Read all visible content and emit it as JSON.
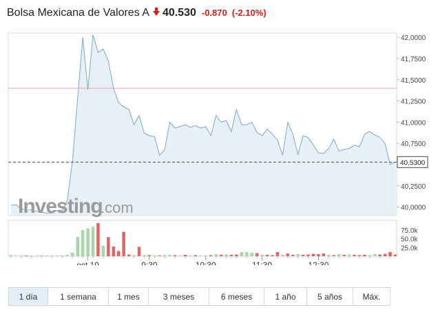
{
  "header": {
    "instrument": "Bolsa Mexicana de Valores A",
    "price": "40.530",
    "change": "-0.870",
    "change_pct": "(-2.10%)",
    "direction_icon": "down-arrow-icon",
    "down_color": "#d91e18"
  },
  "watermark": {
    "brand": "Investing",
    "suffix": ".com"
  },
  "timeframes": [
    {
      "label": "1 día",
      "active": true
    },
    {
      "label": "1 semana",
      "active": false
    },
    {
      "label": "1 mes",
      "active": false
    },
    {
      "label": "3 meses",
      "active": false
    },
    {
      "label": "6 meses",
      "active": false
    },
    {
      "label": "1 año",
      "active": false
    },
    {
      "label": "5 años",
      "active": false
    },
    {
      "label": "Máx.",
      "active": false
    }
  ],
  "chart_data": {
    "type": "area",
    "ylim": [
      39.9,
      42.05
    ],
    "y_ticks": [
      "42,0000",
      "41,7500",
      "41,5000",
      "41,2500",
      "41,0000",
      "40,7500",
      "40,2500",
      "40,0000"
    ],
    "y_tick_values": [
      42.0,
      41.75,
      41.5,
      41.25,
      41.0,
      40.75,
      40.25,
      40.0
    ],
    "x_ticks": [
      "oct 19",
      "9:30",
      "10:30",
      "11:30",
      "12:30"
    ],
    "x_tick_index": [
      15,
      27,
      38,
      49,
      60
    ],
    "last_price_label": "40,5300",
    "last_price": 40.53,
    "previous_close": 41.4,
    "line_color": "#7aa9d0",
    "fill_color": "#e8f0f7",
    "previous_close_color": "#f2a0a0",
    "prices": [
      40.02,
      40.03,
      39.98,
      39.96,
      39.97,
      39.95,
      39.94,
      39.93,
      39.93,
      39.96,
      39.96,
      40.08,
      40.55,
      41.28,
      42.0,
      41.38,
      42.03,
      41.82,
      41.86,
      41.72,
      41.4,
      41.23,
      41.18,
      41.15,
      40.97,
      41.08,
      40.87,
      40.84,
      40.83,
      40.61,
      40.68,
      41.0,
      40.93,
      40.95,
      40.97,
      40.94,
      40.96,
      40.93,
      40.95,
      40.84,
      41.08,
      41.0,
      41.02,
      40.89,
      41.15,
      40.97,
      40.97,
      41.0,
      40.88,
      40.84,
      40.92,
      40.86,
      40.79,
      40.61,
      41.0,
      40.86,
      40.62,
      40.84,
      40.82,
      40.73,
      40.64,
      40.63,
      40.69,
      40.8,
      40.66,
      40.68,
      40.69,
      40.73,
      40.71,
      40.86,
      40.89,
      40.85,
      40.82,
      40.75,
      40.5,
      40.53
    ],
    "volume_ylim": [
      0,
      95
    ],
    "volume_ticks": [
      "75.0k",
      "50.0k",
      "25.0k"
    ],
    "volume_tick_values": [
      75,
      50,
      25
    ],
    "up_color": "#a9d6a9",
    "down_volume_color": "#e06666",
    "volumes": [
      {
        "v": 3,
        "up": true
      },
      {
        "v": 2,
        "up": true
      },
      {
        "v": 2,
        "up": true
      },
      {
        "v": 2,
        "up": false
      },
      {
        "v": 2,
        "up": true
      },
      {
        "v": 2,
        "up": true
      },
      {
        "v": 2,
        "up": true
      },
      {
        "v": 2,
        "up": true
      },
      {
        "v": 2,
        "up": true
      },
      {
        "v": 2,
        "up": true
      },
      {
        "v": 2,
        "up": true
      },
      {
        "v": 4,
        "up": true
      },
      {
        "v": 10,
        "up": true
      },
      {
        "v": 55,
        "up": true
      },
      {
        "v": 75,
        "up": true
      },
      {
        "v": 80,
        "up": true
      },
      {
        "v": 85,
        "up": true
      },
      {
        "v": 95,
        "up": false
      },
      {
        "v": 30,
        "up": true
      },
      {
        "v": 55,
        "up": false
      },
      {
        "v": 28,
        "up": false
      },
      {
        "v": 15,
        "up": false
      },
      {
        "v": 70,
        "up": false
      },
      {
        "v": 5,
        "up": false
      },
      {
        "v": 3,
        "up": true
      },
      {
        "v": 27,
        "up": false
      },
      {
        "v": 3,
        "up": true
      },
      {
        "v": 3,
        "up": false
      },
      {
        "v": 2,
        "up": true
      },
      {
        "v": 2,
        "up": false
      },
      {
        "v": 3,
        "up": true
      },
      {
        "v": 4,
        "up": true
      },
      {
        "v": 3,
        "up": false
      },
      {
        "v": 2,
        "up": true
      },
      {
        "v": 4,
        "up": false
      },
      {
        "v": 2,
        "up": true
      },
      {
        "v": 3,
        "up": false
      },
      {
        "v": 2,
        "up": true
      },
      {
        "v": 2,
        "up": true
      },
      {
        "v": 3,
        "up": false
      },
      {
        "v": 6,
        "up": true
      },
      {
        "v": 4,
        "up": false
      },
      {
        "v": 5,
        "up": true
      },
      {
        "v": 4,
        "up": false
      },
      {
        "v": 5,
        "up": false
      },
      {
        "v": 12,
        "up": true
      },
      {
        "v": 12,
        "up": true
      },
      {
        "v": 10,
        "up": true
      },
      {
        "v": 9,
        "up": false
      },
      {
        "v": 4,
        "up": true
      },
      {
        "v": 4,
        "up": false
      },
      {
        "v": 3,
        "up": false
      },
      {
        "v": 12,
        "up": false
      },
      {
        "v": 4,
        "up": true
      },
      {
        "v": 8,
        "up": false
      },
      {
        "v": 4,
        "up": false
      },
      {
        "v": 6,
        "up": true
      },
      {
        "v": 4,
        "up": false
      },
      {
        "v": 5,
        "up": false
      },
      {
        "v": 7,
        "up": false
      },
      {
        "v": 6,
        "up": false
      },
      {
        "v": 8,
        "up": false
      },
      {
        "v": 4,
        "up": true
      },
      {
        "v": 3,
        "up": false
      },
      {
        "v": 6,
        "up": true
      },
      {
        "v": 4,
        "up": false
      },
      {
        "v": 5,
        "up": true
      },
      {
        "v": 4,
        "up": false
      },
      {
        "v": 3,
        "up": false
      },
      {
        "v": 4,
        "up": false
      },
      {
        "v": 3,
        "up": true
      },
      {
        "v": 6,
        "up": true
      },
      {
        "v": 5,
        "up": false
      },
      {
        "v": 7,
        "up": false
      },
      {
        "v": 12,
        "up": false
      },
      {
        "v": 5,
        "up": false
      }
    ]
  }
}
